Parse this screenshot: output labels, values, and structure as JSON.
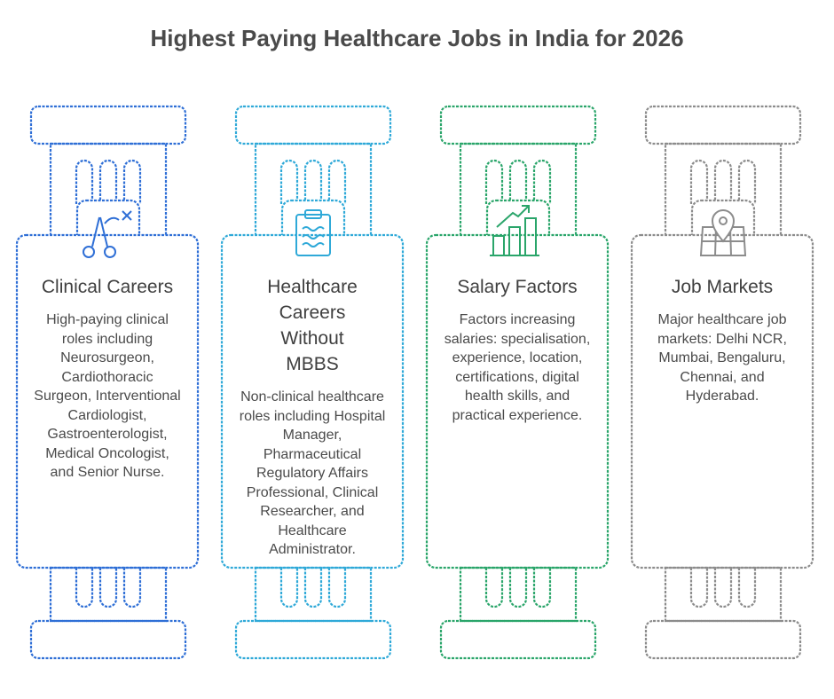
{
  "title": "Highest Paying Healthcare Jobs in India for 2026",
  "pillars": [
    {
      "color": "#2f6fd6",
      "icon": "surgical-scissors-icon",
      "title": "Clinical Careers",
      "body": "High-paying clinical roles including Neurosurgeon, Cardiothoracic Surgeon, Interventional Cardiologist, Gastroenterologist, Medical Oncologist, and Senior Nurse."
    },
    {
      "color": "#2fa9d8",
      "icon": "clipboard-icon",
      "title": "Healthcare Careers Without MBBS",
      "body": "Non-clinical healthcare roles including Hospital Manager, Pharmaceutical Regulatory Affairs Professional, Clinical Researcher, and Healthcare Administrator."
    },
    {
      "color": "#2aa56a",
      "icon": "growth-chart-icon",
      "title": "Salary Factors",
      "body": "Factors increasing salaries: specialisation, experience, location, certifications, digital health skills, and practical experience."
    },
    {
      "color": "#8c8c8c",
      "icon": "map-pin-icon",
      "title": "Job Markets",
      "body": "Major healthcare job markets: Delhi NCR, Mumbai, Bengaluru, Chennai, and Hyderabad."
    }
  ]
}
